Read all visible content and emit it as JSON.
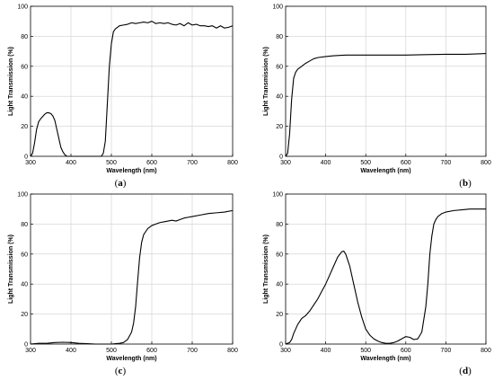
{
  "chart_data": [
    {
      "type": "line",
      "panel_label": "(a)",
      "xlabel": "Wavelength (nm)",
      "ylabel": "Light Transmission (%)",
      "xlim": [
        300,
        800
      ],
      "ylim": [
        0,
        100
      ],
      "xticks": [
        300,
        400,
        500,
        600,
        700,
        800
      ],
      "yticks": [
        0,
        20,
        40,
        60,
        80,
        100
      ],
      "grid": true,
      "series": [
        {
          "x": [
            300,
            305,
            310,
            315,
            320,
            325,
            330,
            335,
            340,
            345,
            350,
            355,
            360,
            365,
            370,
            375,
            380,
            385,
            390,
            395,
            400,
            410,
            420,
            430,
            440,
            450,
            460,
            470,
            475,
            480,
            485,
            490,
            495,
            500,
            505,
            510,
            515,
            520,
            530,
            540,
            550,
            560,
            570,
            580,
            590,
            600,
            610,
            620,
            630,
            640,
            650,
            660,
            670,
            680,
            690,
            700,
            710,
            720,
            730,
            740,
            750,
            760,
            770,
            780,
            790,
            800
          ],
          "y": [
            0,
            2,
            9,
            18,
            23,
            25,
            26.5,
            28,
            29,
            29,
            28.5,
            27,
            24,
            18,
            12,
            6,
            3,
            1,
            0,
            0,
            0,
            0,
            0,
            0,
            0,
            0,
            0,
            0,
            0,
            2,
            10,
            35,
            60,
            75,
            83,
            85,
            86,
            87,
            87.5,
            88,
            89,
            88.5,
            89,
            89.5,
            89,
            90,
            88.5,
            89,
            88.5,
            89,
            88,
            87.5,
            88.5,
            87,
            89,
            87.5,
            88,
            87,
            87,
            86.5,
            87,
            85.5,
            87,
            85.5,
            86,
            87
          ]
        }
      ]
    },
    {
      "type": "line",
      "panel_label": "(b)",
      "xlabel": "Wavelength (nm)",
      "ylabel": "Light Transmission (%)",
      "xlim": [
        300,
        800
      ],
      "ylim": [
        0,
        100
      ],
      "xticks": [
        300,
        400,
        500,
        600,
        700,
        800
      ],
      "yticks": [
        0,
        20,
        40,
        60,
        80,
        100
      ],
      "grid": true,
      "series": [
        {
          "x": [
            300,
            305,
            310,
            315,
            320,
            325,
            330,
            335,
            340,
            350,
            360,
            370,
            380,
            400,
            420,
            450,
            500,
            550,
            600,
            650,
            700,
            750,
            780,
            800
          ],
          "y": [
            0,
            2,
            15,
            38,
            52,
            56,
            58,
            59,
            60,
            62,
            63.5,
            65,
            65.8,
            66.5,
            67,
            67.5,
            67.5,
            67.5,
            67.5,
            67.8,
            68,
            68,
            68.3,
            68.5
          ]
        }
      ]
    },
    {
      "type": "line",
      "panel_label": "(c)",
      "xlabel": "Wavelength (nm)",
      "ylabel": "Light Transmission (%)",
      "xlim": [
        300,
        800
      ],
      "ylim": [
        0,
        100
      ],
      "xticks": [
        300,
        400,
        500,
        600,
        700,
        800
      ],
      "yticks": [
        0,
        20,
        40,
        60,
        80,
        100
      ],
      "grid": true,
      "series": [
        {
          "x": [
            300,
            320,
            340,
            360,
            380,
            400,
            420,
            440,
            460,
            480,
            500,
            520,
            530,
            540,
            550,
            555,
            560,
            565,
            570,
            575,
            580,
            585,
            590,
            600,
            610,
            620,
            630,
            640,
            650,
            660,
            670,
            680,
            690,
            700,
            720,
            740,
            760,
            780,
            800
          ],
          "y": [
            0,
            0.5,
            0.5,
            1,
            1.2,
            1,
            0.5,
            0.3,
            0,
            0,
            0,
            0.5,
            1,
            3,
            8,
            14,
            25,
            42,
            58,
            68,
            73,
            75,
            77,
            79,
            80,
            81,
            81.5,
            82,
            82.5,
            82,
            83,
            84,
            84.5,
            85,
            86,
            87,
            87.5,
            88,
            89
          ]
        }
      ]
    },
    {
      "type": "line",
      "panel_label": "(d)",
      "xlabel": "Wavelength (nm)",
      "ylabel": "Light Transmission (%)",
      "xlim": [
        300,
        800
      ],
      "ylim": [
        0,
        100
      ],
      "xticks": [
        300,
        400,
        500,
        600,
        700,
        800
      ],
      "yticks": [
        0,
        20,
        40,
        60,
        80,
        100
      ],
      "grid": true,
      "series": [
        {
          "x": [
            300,
            305,
            310,
            315,
            320,
            325,
            330,
            340,
            350,
            360,
            370,
            380,
            390,
            400,
            410,
            420,
            430,
            440,
            445,
            450,
            460,
            470,
            480,
            490,
            500,
            510,
            520,
            530,
            540,
            550,
            560,
            570,
            580,
            590,
            600,
            610,
            620,
            630,
            640,
            650,
            655,
            660,
            665,
            670,
            675,
            680,
            690,
            700,
            720,
            740,
            760,
            780,
            800
          ],
          "y": [
            0,
            0.5,
            1,
            3,
            7,
            10,
            13,
            17,
            19,
            22,
            26,
            30,
            35,
            40,
            46,
            52,
            58,
            61.5,
            62,
            60,
            52,
            40,
            28,
            18,
            10,
            6,
            3.5,
            2,
            1,
            0.5,
            0.5,
            1,
            2,
            3.5,
            5,
            4.5,
            3,
            3.5,
            8,
            25,
            40,
            60,
            72,
            80,
            83,
            85,
            87,
            88,
            89,
            89.5,
            90,
            90,
            90
          ]
        }
      ]
    }
  ]
}
